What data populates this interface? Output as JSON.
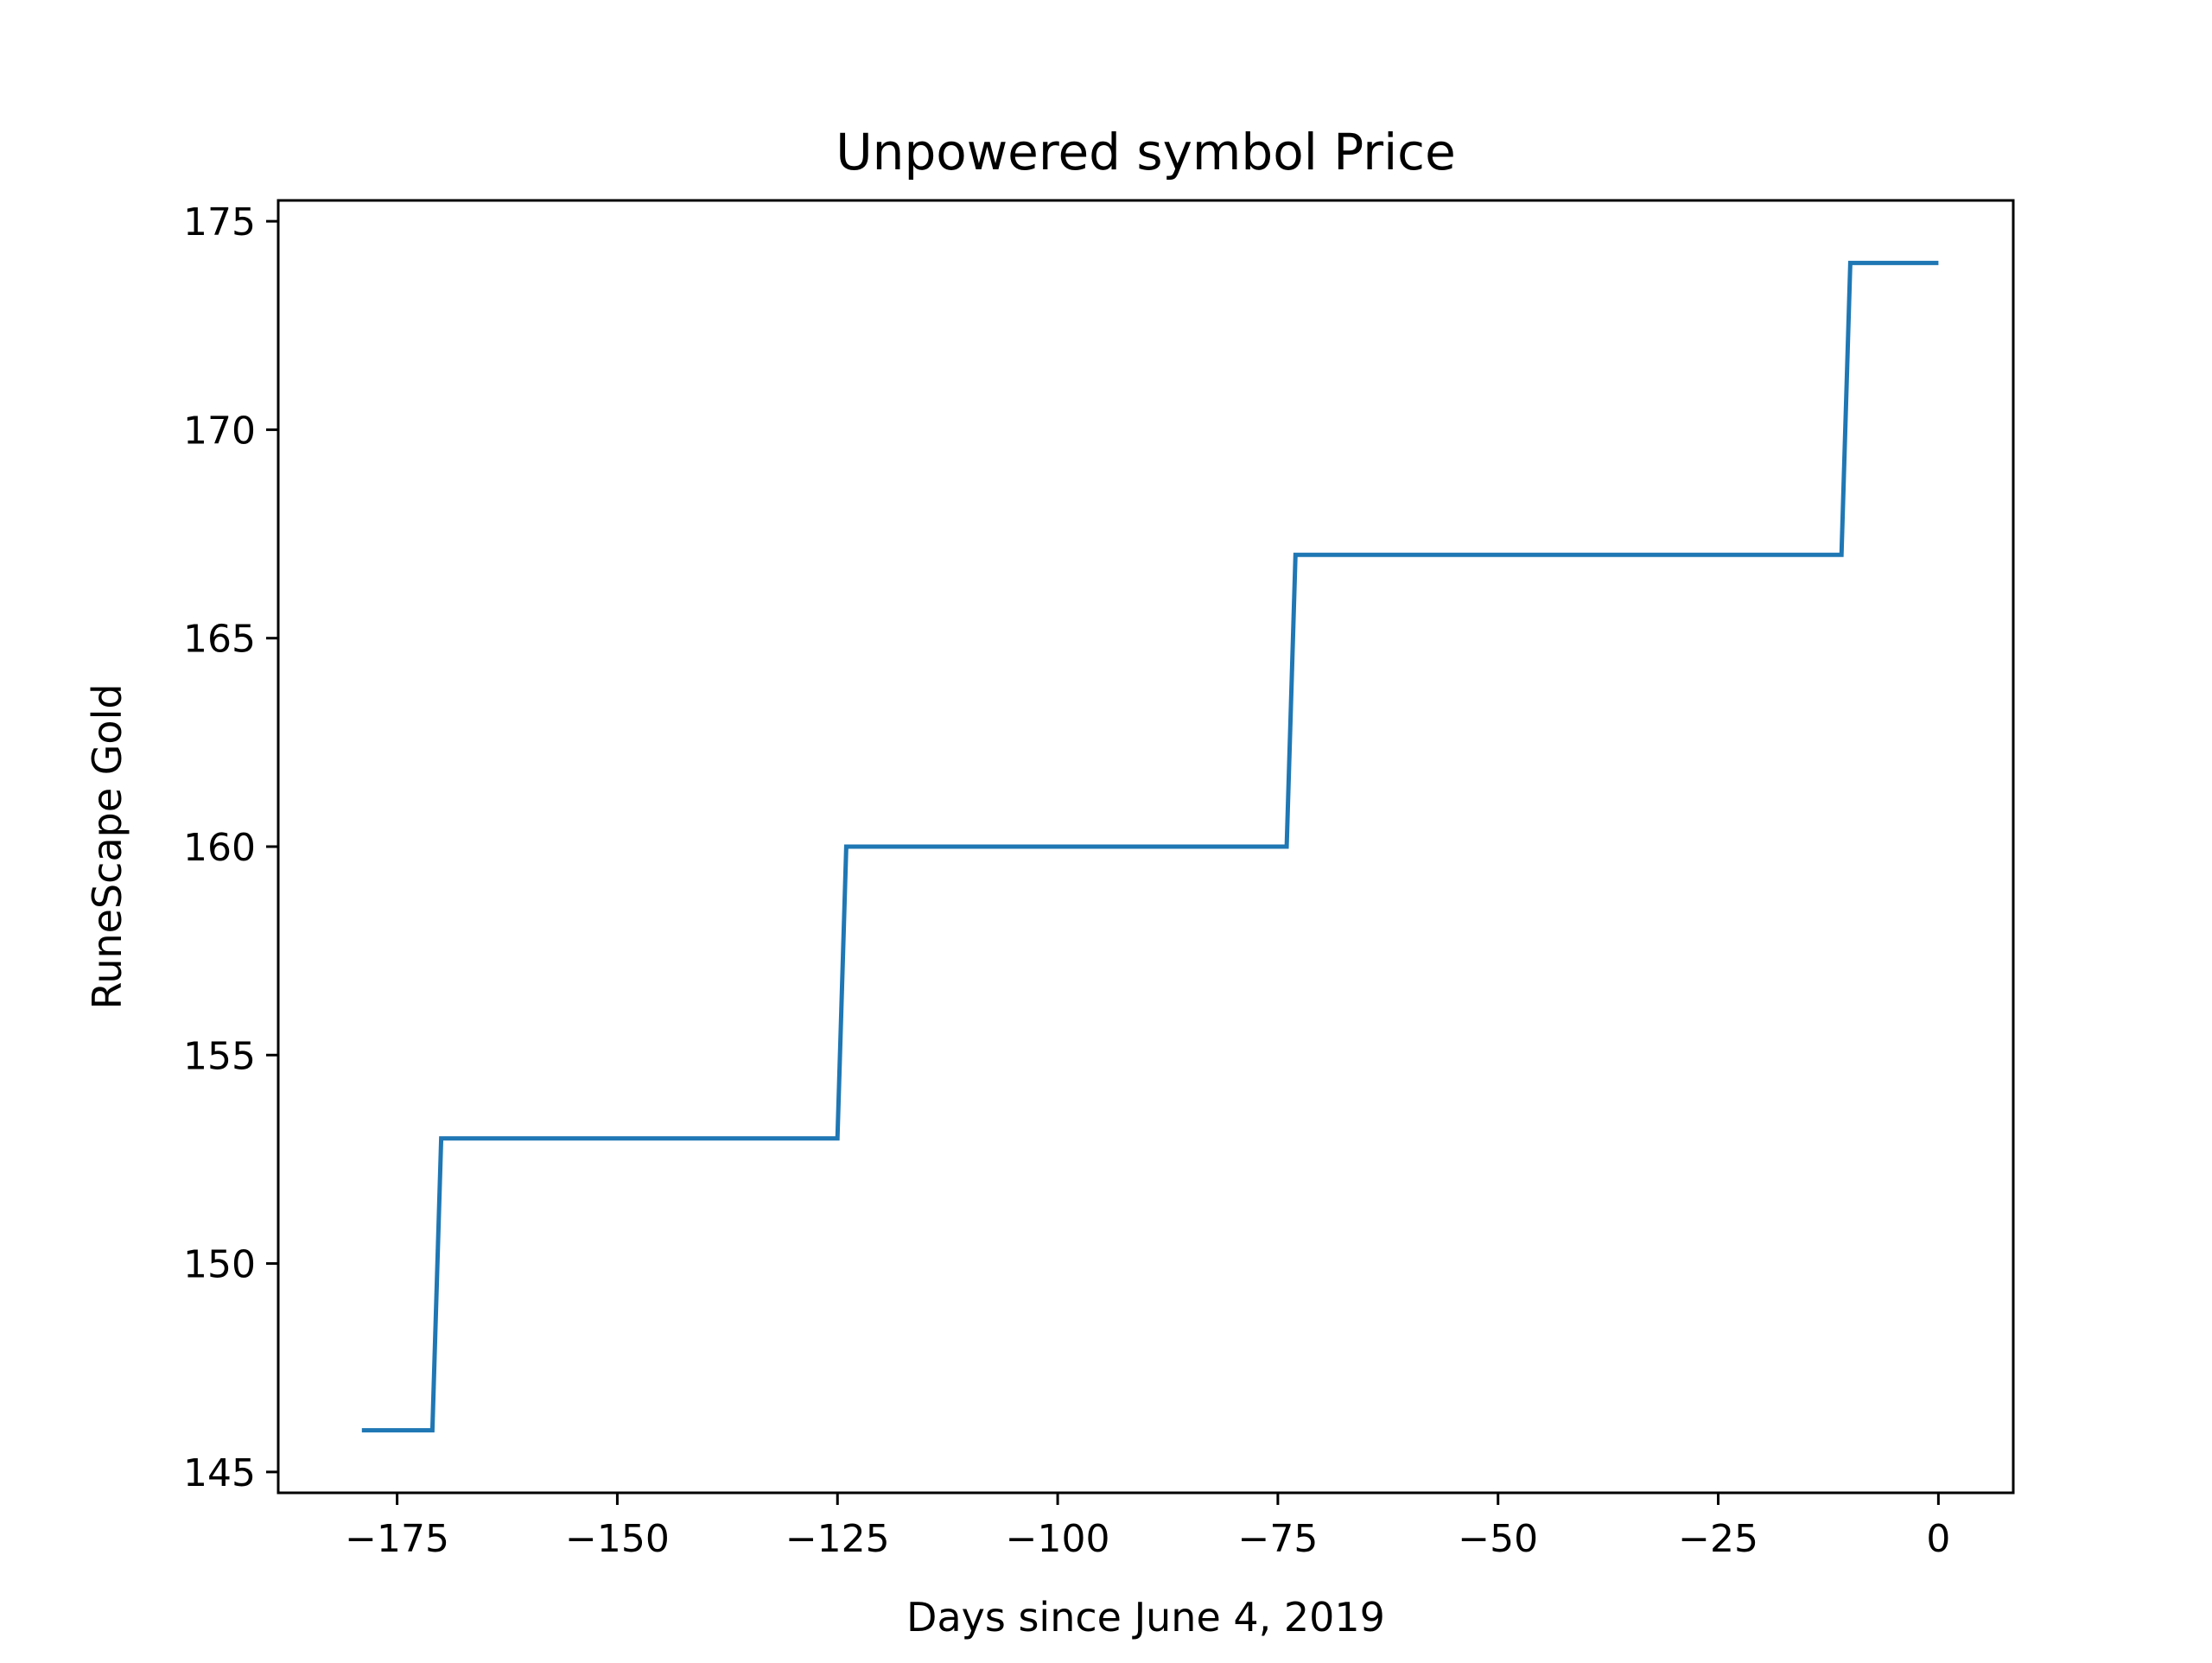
{
  "chart_data": {
    "type": "line",
    "title": "Unpowered symbol Price",
    "xlabel": "Days since June 4, 2019",
    "ylabel": "RuneScape Gold",
    "xlim": [
      -188.5,
      8.5
    ],
    "ylim": [
      144.5,
      175.5
    ],
    "xticks": [
      -175,
      -150,
      -125,
      -100,
      -75,
      -50,
      -25,
      0
    ],
    "xtick_labels": [
      "−175",
      "−150",
      "−125",
      "−100",
      "−75",
      "−50",
      "−25",
      "0"
    ],
    "yticks": [
      145,
      150,
      155,
      160,
      165,
      170,
      175
    ],
    "ytick_labels": [
      "145",
      "150",
      "155",
      "160",
      "165",
      "170",
      "175"
    ],
    "grid": false,
    "legend": "none",
    "series": [
      {
        "color": "#1f77b4",
        "x": [
          -179,
          -171,
          -170,
          -125,
          -124,
          -74,
          -73,
          -11,
          -10,
          0
        ],
        "y": [
          146,
          146,
          153,
          153,
          160,
          160,
          167,
          167,
          174,
          174
        ]
      }
    ]
  }
}
